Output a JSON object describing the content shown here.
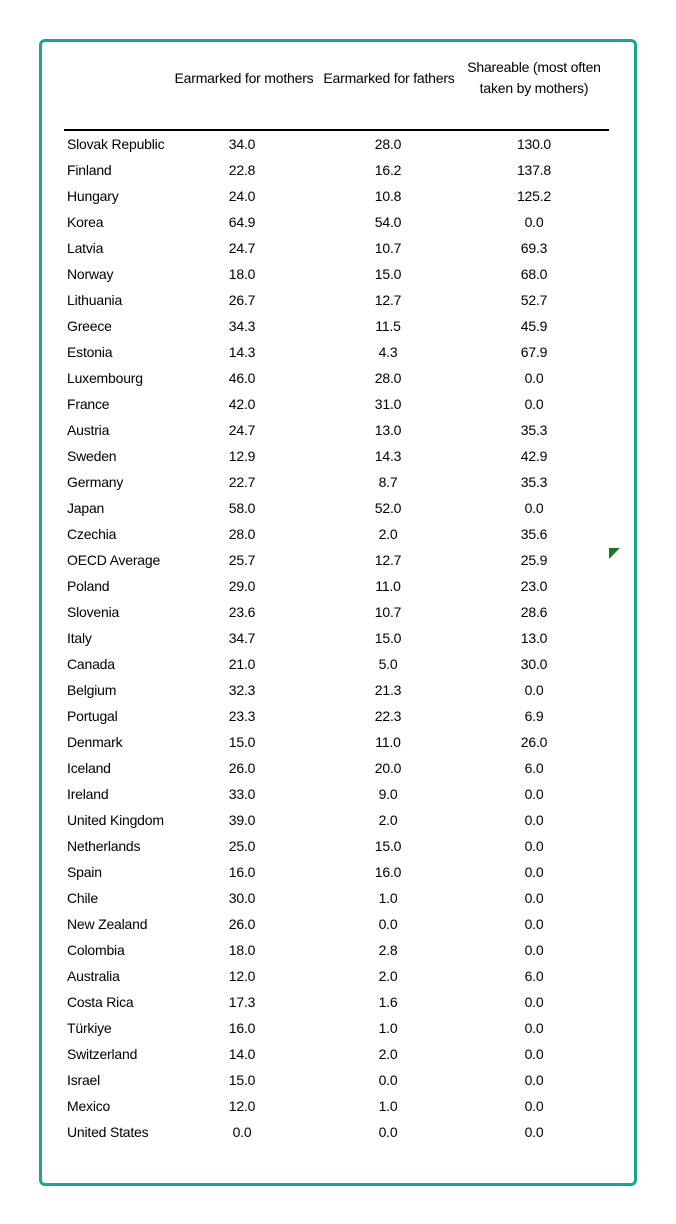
{
  "table": {
    "headers": [
      "",
      "Earmarked for mothers",
      "Earmarked for fathers",
      "Shareable (most often taken by mothers)"
    ],
    "header3_lines": [
      "Shareable (most often",
      "taken by mothers)"
    ],
    "rows": [
      [
        "Slovak Republic",
        "34.0",
        "28.0",
        "130.0"
      ],
      [
        "Finland",
        "22.8",
        "16.2",
        "137.8"
      ],
      [
        "Hungary",
        "24.0",
        "10.8",
        "125.2"
      ],
      [
        "Korea",
        "64.9",
        "54.0",
        "0.0"
      ],
      [
        "Latvia",
        "24.7",
        "10.7",
        "69.3"
      ],
      [
        "Norway",
        "18.0",
        "15.0",
        "68.0"
      ],
      [
        "Lithuania",
        "26.7",
        "12.7",
        "52.7"
      ],
      [
        "Greece",
        "34.3",
        "11.5",
        "45.9"
      ],
      [
        "Estonia",
        "14.3",
        "4.3",
        "67.9"
      ],
      [
        "Luxembourg",
        "46.0",
        "28.0",
        "0.0"
      ],
      [
        "France",
        "42.0",
        "31.0",
        "0.0"
      ],
      [
        "Austria",
        "24.7",
        "13.0",
        "35.3"
      ],
      [
        "Sweden",
        "12.9",
        "14.3",
        "42.9"
      ],
      [
        "Germany",
        "22.7",
        "8.7",
        "35.3"
      ],
      [
        "Japan",
        "58.0",
        "52.0",
        "0.0"
      ],
      [
        "Czechia",
        "28.0",
        "2.0",
        "35.6"
      ],
      [
        "OECD Average",
        "25.7",
        "12.7",
        "25.9"
      ],
      [
        "Poland",
        "29.0",
        "11.0",
        "23.0"
      ],
      [
        "Slovenia",
        "23.6",
        "10.7",
        "28.6"
      ],
      [
        "Italy",
        "34.7",
        "15.0",
        "13.0"
      ],
      [
        "Canada",
        "21.0",
        "5.0",
        "30.0"
      ],
      [
        "Belgium",
        "32.3",
        "21.3",
        "0.0"
      ],
      [
        "Portugal",
        "23.3",
        "22.3",
        "6.9"
      ],
      [
        "Denmark",
        "15.0",
        "11.0",
        "26.0"
      ],
      [
        "Iceland",
        "26.0",
        "20.0",
        "6.0"
      ],
      [
        "Ireland",
        "33.0",
        "9.0",
        "0.0"
      ],
      [
        "United Kingdom",
        "39.0",
        "2.0",
        "0.0"
      ],
      [
        "Netherlands",
        "25.0",
        "15.0",
        "0.0"
      ],
      [
        "Spain",
        "16.0",
        "16.0",
        "0.0"
      ],
      [
        "Chile",
        "30.0",
        "1.0",
        "0.0"
      ],
      [
        "New Zealand",
        "26.0",
        "0.0",
        "0.0"
      ],
      [
        "Colombia",
        "18.0",
        "2.8",
        "0.0"
      ],
      [
        "Australia",
        "12.0",
        "2.0",
        "6.0"
      ],
      [
        "Costa Rica",
        "17.3",
        "1.6",
        "0.0"
      ],
      [
        "Türkiye",
        "16.0",
        "1.0",
        "0.0"
      ],
      [
        "Switzerland",
        "14.0",
        "2.0",
        "0.0"
      ],
      [
        "Israel",
        "15.0",
        "0.0",
        "0.0"
      ],
      [
        "Mexico",
        "12.0",
        "1.0",
        "0.0"
      ],
      [
        "United States",
        "0.0",
        "0.0",
        "0.0"
      ]
    ]
  },
  "colors": {
    "frame_border": "#1fa391",
    "corner_marker": "#1a7a1a"
  },
  "icons": {
    "corner_marker": "green-triangle-marker-icon"
  }
}
